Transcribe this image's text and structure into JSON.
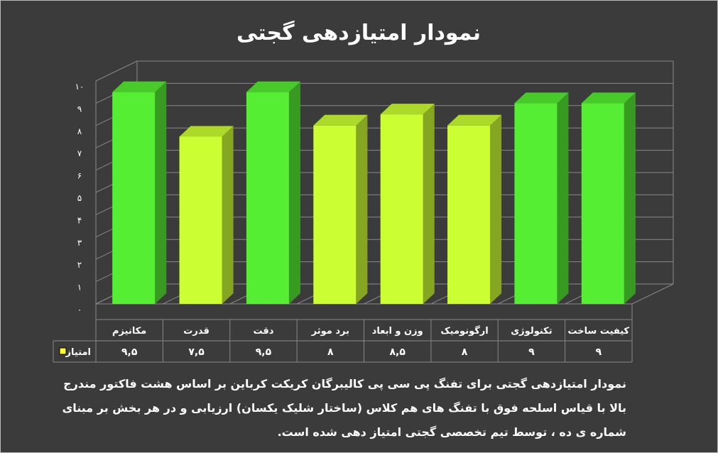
{
  "chart_data": {
    "type": "bar3d",
    "title": "نمودار امتیازدهی گجتی",
    "categories": [
      "مکانیزم",
      "قدرت",
      "دقت",
      "برد موثر",
      "وزن و ابعاد",
      "ارگونومیک",
      "تکنولوژی",
      "کیفیت ساخت"
    ],
    "series": [
      {
        "name": "امتیاز",
        "color": "#ffff33",
        "colors": [
          "#55ee33",
          "#ccff33",
          "#55ee33",
          "#ccff33",
          "#ccff33",
          "#ccff33",
          "#55ee33",
          "#55ee33"
        ],
        "values": [
          9.5,
          7.5,
          9.5,
          8,
          8.5,
          8,
          9,
          9
        ],
        "value_labels": [
          "۹,۵",
          "۷,۵",
          "۹,۵",
          "۸",
          "۸,۵",
          "۸",
          "۹",
          "۹"
        ]
      }
    ],
    "ylim": [
      0,
      10
    ],
    "yticks": [
      {
        "value": 0,
        "label": "۰"
      },
      {
        "value": 1,
        "label": "۱"
      },
      {
        "value": 2,
        "label": "۲"
      },
      {
        "value": 3,
        "label": "۳"
      },
      {
        "value": 4,
        "label": "۴"
      },
      {
        "value": 5,
        "label": "۵"
      },
      {
        "value": 6,
        "label": "۶"
      },
      {
        "value": 7,
        "label": "۷"
      },
      {
        "value": 8,
        "label": "۸"
      },
      {
        "value": 9,
        "label": "۹"
      },
      {
        "value": 10,
        "label": "۱۰"
      }
    ],
    "grid": true,
    "caption": [
      "نمودار امتیازدهی گجتی برای تفنگ پی سی پی کالیبرگان کریکت کرباین بر اساس هشت فاکتور مندرج",
      "بالا با قیاس اسلحه فوق با تفنگ های هم کلاس (ساختار شلیک یکسان) ارزیابی و در هر بخش بر مبنای",
      "شماره ی ده ، توسط تیم تخصصی گجتی امتیاز دهی شده است."
    ]
  }
}
